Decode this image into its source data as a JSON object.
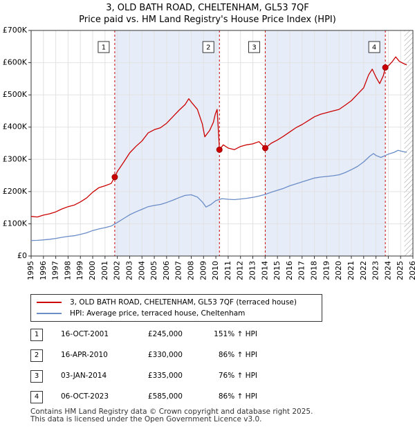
{
  "chart_data": {
    "type": "line",
    "title": "3, OLD BATH ROAD, CHELTENHAM, GL53 7QF",
    "subtitle": "Price paid vs. HM Land Registry's House Price Index (HPI)",
    "xlim": [
      1995,
      2026
    ],
    "ylim": [
      0,
      700000
    ],
    "x_ticks": [
      "1995",
      "1996",
      "1997",
      "1998",
      "1999",
      "2000",
      "2001",
      "2002",
      "2003",
      "2004",
      "2005",
      "2006",
      "2007",
      "2008",
      "2009",
      "2010",
      "2011",
      "2012",
      "2013",
      "2014",
      "2015",
      "2016",
      "2017",
      "2018",
      "2019",
      "2020",
      "2021",
      "2022",
      "2023",
      "2024",
      "2025",
      "2026"
    ],
    "y_ticks": [
      {
        "value": 0,
        "label": "£0"
      },
      {
        "value": 100000,
        "label": "£100K"
      },
      {
        "value": 200000,
        "label": "£200K"
      },
      {
        "value": 300000,
        "label": "£300K"
      },
      {
        "value": 400000,
        "label": "£400K"
      },
      {
        "value": 500000,
        "label": "£500K"
      },
      {
        "value": 600000,
        "label": "£600K"
      },
      {
        "value": 700000,
        "label": "£700K"
      }
    ],
    "grid": true,
    "shaded_ranges": [
      [
        2001.79,
        2010.29
      ],
      [
        2014.01,
        2023.76
      ]
    ],
    "future_hatch_start": 2025.3,
    "series": [
      {
        "name": "3, OLD BATH ROAD, CHELTENHAM, GL53 7QF (terraced house)",
        "color": "#cc0000",
        "points": [
          [
            1995.0,
            123000
          ],
          [
            1995.5,
            121000
          ],
          [
            1996.0,
            127000
          ],
          [
            1996.5,
            131000
          ],
          [
            1997.0,
            137000
          ],
          [
            1997.5,
            146000
          ],
          [
            1998.0,
            153000
          ],
          [
            1998.5,
            158000
          ],
          [
            1999.0,
            168000
          ],
          [
            1999.5,
            180000
          ],
          [
            2000.0,
            198000
          ],
          [
            2000.5,
            212000
          ],
          [
            2001.0,
            218000
          ],
          [
            2001.5,
            225000
          ],
          [
            2001.79,
            245000
          ],
          [
            2002.0,
            262000
          ],
          [
            2002.5,
            290000
          ],
          [
            2003.0,
            320000
          ],
          [
            2003.5,
            340000
          ],
          [
            2004.0,
            357000
          ],
          [
            2004.5,
            382000
          ],
          [
            2005.0,
            392000
          ],
          [
            2005.5,
            398000
          ],
          [
            2006.0,
            412000
          ],
          [
            2006.5,
            432000
          ],
          [
            2007.0,
            452000
          ],
          [
            2007.5,
            470000
          ],
          [
            2007.8,
            488000
          ],
          [
            2008.0,
            478000
          ],
          [
            2008.5,
            455000
          ],
          [
            2008.9,
            410000
          ],
          [
            2009.1,
            370000
          ],
          [
            2009.5,
            390000
          ],
          [
            2009.8,
            415000
          ],
          [
            2009.95,
            440000
          ],
          [
            2010.1,
            455000
          ],
          [
            2010.2,
            390000
          ],
          [
            2010.29,
            330000
          ],
          [
            2010.6,
            345000
          ],
          [
            2011.0,
            335000
          ],
          [
            2011.5,
            330000
          ],
          [
            2012.0,
            340000
          ],
          [
            2012.5,
            345000
          ],
          [
            2013.0,
            348000
          ],
          [
            2013.5,
            355000
          ],
          [
            2014.01,
            335000
          ],
          [
            2014.5,
            350000
          ],
          [
            2015.0,
            360000
          ],
          [
            2015.5,
            372000
          ],
          [
            2016.0,
            385000
          ],
          [
            2016.5,
            398000
          ],
          [
            2017.0,
            408000
          ],
          [
            2017.5,
            420000
          ],
          [
            2018.0,
            432000
          ],
          [
            2018.5,
            440000
          ],
          [
            2019.0,
            445000
          ],
          [
            2019.5,
            450000
          ],
          [
            2020.0,
            455000
          ],
          [
            2020.5,
            468000
          ],
          [
            2021.0,
            482000
          ],
          [
            2021.5,
            502000
          ],
          [
            2022.0,
            522000
          ],
          [
            2022.4,
            562000
          ],
          [
            2022.7,
            580000
          ],
          [
            2023.0,
            555000
          ],
          [
            2023.3,
            535000
          ],
          [
            2023.6,
            560000
          ],
          [
            2023.76,
            585000
          ],
          [
            2024.0,
            590000
          ],
          [
            2024.3,
            602000
          ],
          [
            2024.6,
            618000
          ],
          [
            2024.9,
            604000
          ],
          [
            2025.2,
            598000
          ],
          [
            2025.5,
            593000
          ]
        ]
      },
      {
        "name": "HPI: Average price, terraced house, Cheltenham",
        "color": "#6a8cc7",
        "points": [
          [
            1995.0,
            48000
          ],
          [
            1995.5,
            48500
          ],
          [
            1996.0,
            50000
          ],
          [
            1996.5,
            52000
          ],
          [
            1997.0,
            54500
          ],
          [
            1997.5,
            58000
          ],
          [
            1998.0,
            61000
          ],
          [
            1998.5,
            63000
          ],
          [
            1999.0,
            67000
          ],
          [
            1999.5,
            72000
          ],
          [
            2000.0,
            79000
          ],
          [
            2000.5,
            84000
          ],
          [
            2001.0,
            88000
          ],
          [
            2001.5,
            93000
          ],
          [
            2002.0,
            104000
          ],
          [
            2002.5,
            116000
          ],
          [
            2003.0,
            128000
          ],
          [
            2003.5,
            137000
          ],
          [
            2004.0,
            145000
          ],
          [
            2004.5,
            153000
          ],
          [
            2005.0,
            157000
          ],
          [
            2005.5,
            160000
          ],
          [
            2006.0,
            166000
          ],
          [
            2006.5,
            173000
          ],
          [
            2007.0,
            181000
          ],
          [
            2007.5,
            188000
          ],
          [
            2008.0,
            190000
          ],
          [
            2008.5,
            183000
          ],
          [
            2008.9,
            168000
          ],
          [
            2009.2,
            152000
          ],
          [
            2009.6,
            160000
          ],
          [
            2010.0,
            172000
          ],
          [
            2010.5,
            178000
          ],
          [
            2011.0,
            176000
          ],
          [
            2011.5,
            175000
          ],
          [
            2012.0,
            177000
          ],
          [
            2012.5,
            179000
          ],
          [
            2013.0,
            182000
          ],
          [
            2013.5,
            186000
          ],
          [
            2014.0,
            191000
          ],
          [
            2014.5,
            198000
          ],
          [
            2015.0,
            204000
          ],
          [
            2015.5,
            210000
          ],
          [
            2016.0,
            218000
          ],
          [
            2016.5,
            224000
          ],
          [
            2017.0,
            230000
          ],
          [
            2017.5,
            236000
          ],
          [
            2018.0,
            242000
          ],
          [
            2018.5,
            245000
          ],
          [
            2019.0,
            247000
          ],
          [
            2019.5,
            249000
          ],
          [
            2020.0,
            252000
          ],
          [
            2020.5,
            259000
          ],
          [
            2021.0,
            268000
          ],
          [
            2021.5,
            278000
          ],
          [
            2022.0,
            292000
          ],
          [
            2022.5,
            310000
          ],
          [
            2022.8,
            318000
          ],
          [
            2023.0,
            312000
          ],
          [
            2023.4,
            306000
          ],
          [
            2023.76,
            312000
          ],
          [
            2024.0,
            316000
          ],
          [
            2024.5,
            322000
          ],
          [
            2024.8,
            328000
          ],
          [
            2025.2,
            324000
          ],
          [
            2025.5,
            322000
          ]
        ]
      }
    ],
    "markers": [
      {
        "label": "1",
        "x": 2001.79,
        "y": 245000
      },
      {
        "label": "2",
        "x": 2010.29,
        "y": 330000
      },
      {
        "label": "3",
        "x": 2014.01,
        "y": 335000
      },
      {
        "label": "4",
        "x": 2023.76,
        "y": 585000
      }
    ]
  },
  "legend": {
    "property_label": "3, OLD BATH ROAD, CHELTENHAM, GL53 7QF (terraced house)",
    "hpi_label": "HPI: Average price, terraced house, Cheltenham",
    "property_color": "#cc0000",
    "hpi_color": "#6a8cc7"
  },
  "sales": [
    {
      "num": "1",
      "date": "16-OCT-2001",
      "price": "£245,000",
      "hpi": "151% ↑ HPI"
    },
    {
      "num": "2",
      "date": "16-APR-2010",
      "price": "£330,000",
      "hpi": "86% ↑ HPI"
    },
    {
      "num": "3",
      "date": "03-JAN-2014",
      "price": "£335,000",
      "hpi": "76% ↑ HPI"
    },
    {
      "num": "4",
      "date": "06-OCT-2023",
      "price": "£585,000",
      "hpi": "86% ↑ HPI"
    }
  ],
  "footer": {
    "line1": "Contains HM Land Registry data © Crown copyright and database right 2025.",
    "line2": "This data is licensed under the Open Government Licence v3.0."
  }
}
